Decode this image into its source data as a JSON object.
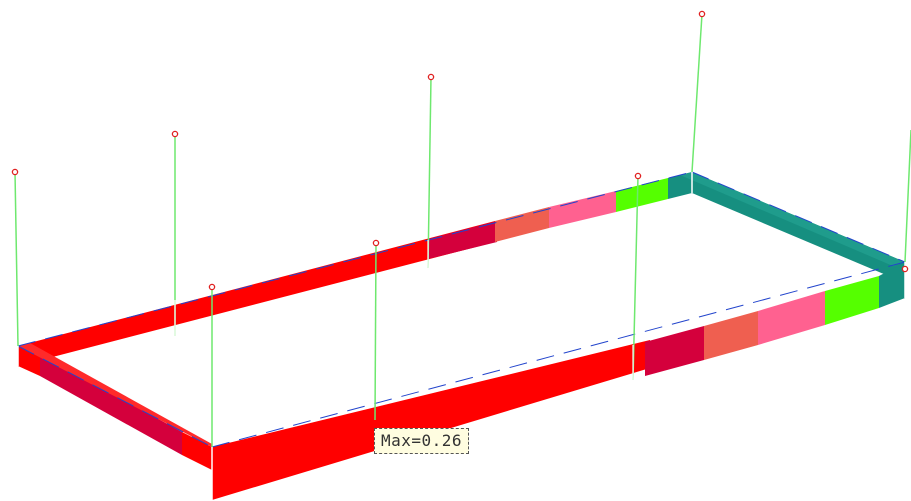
{
  "viewer": {
    "label_text": "Max=0.26"
  },
  "colors": {
    "background": "#ffffff",
    "red": "#ff0000",
    "crimson": "#d4003c",
    "salmon": "#ef5f50",
    "pink": "#ff6190",
    "green": "#55ff00",
    "teal": "#168f80",
    "column_line": "#6ee86e",
    "node_marker": "#e02020",
    "edge_line": "#2244cc"
  },
  "legend_values": {
    "max_ratio": 0.26
  }
}
